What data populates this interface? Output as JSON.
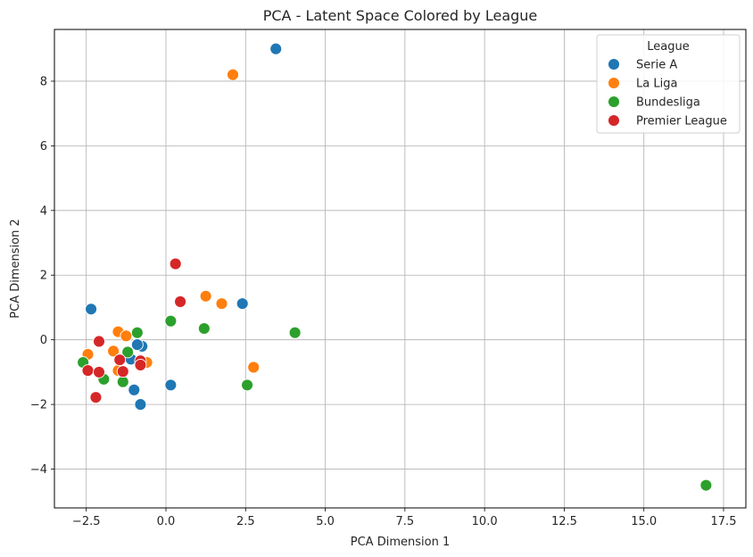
{
  "chart_data": {
    "type": "scatter",
    "title": "PCA - Latent Space Colored by League",
    "xlabel": "PCA Dimension 1",
    "ylabel": "PCA Dimension 2",
    "xlim": [
      -3.5,
      18.2
    ],
    "ylim": [
      -5.2,
      9.6
    ],
    "xticks": [
      -2.5,
      0.0,
      2.5,
      5.0,
      7.5,
      10.0,
      12.5,
      15.0,
      17.5
    ],
    "xtick_labels": [
      "−2.5",
      "0.0",
      "2.5",
      "5.0",
      "7.5",
      "10.0",
      "12.5",
      "15.0",
      "17.5"
    ],
    "yticks": [
      -4,
      -2,
      0,
      2,
      4,
      6,
      8
    ],
    "ytick_labels": [
      "−4",
      "−2",
      "0",
      "2",
      "4",
      "6",
      "8"
    ],
    "grid": true,
    "legend": {
      "title": "League",
      "placement": "top-right"
    },
    "series": [
      {
        "name": "Serie A",
        "color": "#1f77b4",
        "points": [
          [
            3.45,
            9.0
          ],
          [
            2.4,
            1.12
          ],
          [
            -2.35,
            0.95
          ],
          [
            -0.75,
            -0.2
          ],
          [
            -0.9,
            -0.15
          ],
          [
            -1.1,
            -0.6
          ],
          [
            -0.75,
            -0.7
          ],
          [
            -1.0,
            -1.55
          ],
          [
            0.15,
            -1.4
          ],
          [
            -0.8,
            -2.0
          ]
        ]
      },
      {
        "name": "La Liga",
        "color": "#ff7f0e",
        "points": [
          [
            2.1,
            8.2
          ],
          [
            1.25,
            1.35
          ],
          [
            1.75,
            1.12
          ],
          [
            -1.5,
            0.25
          ],
          [
            -1.25,
            0.12
          ],
          [
            -2.45,
            -0.45
          ],
          [
            -1.65,
            -0.35
          ],
          [
            -0.6,
            -0.7
          ],
          [
            -1.5,
            -0.95
          ],
          [
            2.75,
            -0.85
          ]
        ]
      },
      {
        "name": "Bundesliga",
        "color": "#2ca02c",
        "points": [
          [
            0.15,
            0.58
          ],
          [
            1.2,
            0.35
          ],
          [
            4.05,
            0.22
          ],
          [
            -0.9,
            0.22
          ],
          [
            -2.6,
            -0.7
          ],
          [
            -1.2,
            -0.38
          ],
          [
            -1.95,
            -1.22
          ],
          [
            -1.35,
            -1.3
          ],
          [
            2.55,
            -1.4
          ],
          [
            16.95,
            -4.5
          ]
        ]
      },
      {
        "name": "Premier League",
        "color": "#d62728",
        "points": [
          [
            0.3,
            2.35
          ],
          [
            0.45,
            1.18
          ],
          [
            -2.1,
            -0.05
          ],
          [
            -1.45,
            -0.62
          ],
          [
            -0.8,
            -0.65
          ],
          [
            -0.8,
            -0.78
          ],
          [
            -2.45,
            -0.95
          ],
          [
            -2.1,
            -1.0
          ],
          [
            -1.35,
            -0.98
          ],
          [
            -2.2,
            -1.78
          ]
        ]
      }
    ]
  }
}
